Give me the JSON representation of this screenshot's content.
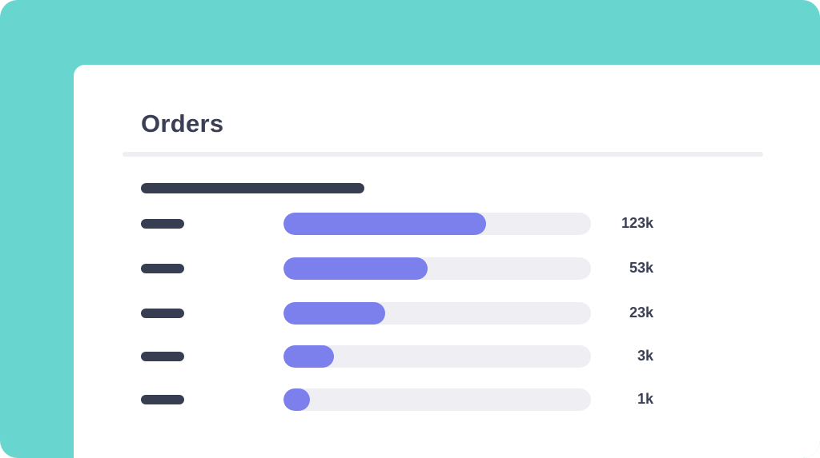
{
  "card": {
    "title": "Orders"
  },
  "colors": {
    "background": "#69d5cf",
    "card": "#ffffff",
    "bar_fill": "#7b80ec",
    "bar_track": "#efeff3",
    "text": "#3a3f55",
    "placeholder": "#383e52"
  },
  "rows": [
    {
      "value_label": "123k",
      "fill_fraction": 0.66
    },
    {
      "value_label": "53k",
      "fill_fraction": 0.47
    },
    {
      "value_label": "23k",
      "fill_fraction": 0.33
    },
    {
      "value_label": "3k",
      "fill_fraction": 0.165
    },
    {
      "value_label": "1k",
      "fill_fraction": 0.085
    }
  ]
}
